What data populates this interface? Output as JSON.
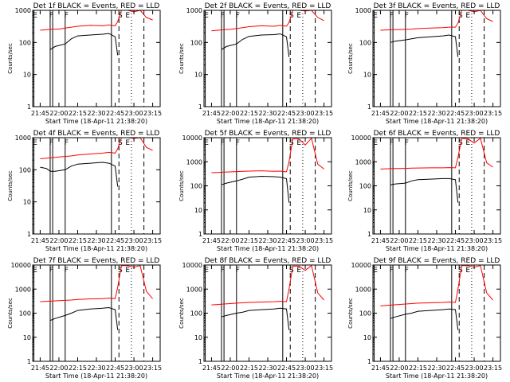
{
  "chart_data": {
    "type": "line",
    "layout": "3x3 grid",
    "series_colors": {
      "events": "#000000",
      "lld": "#ff0000"
    },
    "x_tick_labels": [
      "21:45",
      "22:00",
      "22:15",
      "22:30",
      "22:45",
      "23:00",
      "23:15"
    ],
    "x_tick_minutes": [
      0,
      15,
      30,
      45,
      60,
      75,
      90
    ],
    "xlim_minutes": [
      -6,
      96
    ],
    "xlabel": "Start Time (18-Apr-11 21:38:20)",
    "ylabel": "Counts/sec",
    "yscale": "log",
    "solid_markers_min": [
      -5,
      8,
      10,
      20,
      57
    ],
    "dashed_markers_min": [
      63,
      83
    ],
    "dotted_markers_min": [
      73
    ],
    "tags": [
      {
        "text": "E",
        "at_min": -4
      },
      {
        "text": "F",
        "at_min": 9
      },
      {
        "text": "F",
        "at_min": 21
      },
      {
        "text": "S",
        "at_min": 64
      },
      {
        "text": "E",
        "at_min": 70
      }
    ],
    "panels": [
      {
        "title": "Det 1f BLACK = Events, RED = LLD",
        "ylim": [
          1,
          1000
        ],
        "y_tick_labels": [
          "1",
          "10",
          "100",
          "1000"
        ],
        "y_tick_values": [
          1,
          10,
          100,
          1000
        ],
        "events": {
          "x": [
            8,
            12,
            20,
            25,
            30,
            40,
            50,
            55,
            60,
            62
          ],
          "y": [
            60,
            75,
            90,
            130,
            160,
            170,
            180,
            190,
            150,
            40
          ]
        },
        "lld": {
          "x": [
            0,
            5,
            10,
            15,
            20,
            25,
            30,
            40,
            50,
            55,
            60,
            62,
            65,
            70,
            75,
            80,
            85,
            90
          ],
          "y": [
            240,
            250,
            260,
            260,
            280,
            300,
            320,
            340,
            330,
            350,
            330,
            450,
            1000,
            1000,
            900,
            1000,
            600,
            500
          ]
        }
      },
      {
        "title": "Det 2f BLACK = Events, RED = LLD",
        "ylim": [
          1,
          1000
        ],
        "y_tick_labels": [
          "1",
          "10",
          "100",
          "1000"
        ],
        "y_tick_values": [
          1,
          10,
          100,
          1000
        ],
        "events": {
          "x": [
            8,
            12,
            20,
            25,
            30,
            40,
            50,
            55,
            60,
            62
          ],
          "y": [
            60,
            75,
            90,
            125,
            155,
            170,
            175,
            185,
            150,
            35
          ]
        },
        "lld": {
          "x": [
            0,
            5,
            10,
            15,
            20,
            25,
            30,
            40,
            50,
            55,
            60,
            62,
            65,
            70,
            75,
            80,
            85,
            90
          ],
          "y": [
            230,
            240,
            250,
            255,
            270,
            290,
            310,
            330,
            320,
            340,
            320,
            420,
            1000,
            1000,
            950,
            1000,
            600,
            480
          ]
        }
      },
      {
        "title": "Det 3f BLACK = Events, RED = LLD",
        "ylim": [
          1,
          1000
        ],
        "y_tick_labels": [
          "1",
          "10",
          "100",
          "1000"
        ],
        "y_tick_values": [
          1,
          10,
          100,
          1000
        ],
        "events": {
          "x": [
            8,
            12,
            20,
            25,
            30,
            40,
            50,
            55,
            60,
            62
          ],
          "y": [
            100,
            110,
            120,
            130,
            140,
            150,
            160,
            170,
            150,
            35
          ]
        },
        "lld": {
          "x": [
            0,
            5,
            10,
            15,
            20,
            25,
            30,
            40,
            50,
            55,
            60,
            62,
            65,
            70,
            75,
            80,
            85,
            90
          ],
          "y": [
            240,
            245,
            250,
            250,
            255,
            260,
            270,
            280,
            290,
            300,
            300,
            400,
            1000,
            1000,
            900,
            1000,
            550,
            450
          ]
        }
      },
      {
        "title": "Det 4f BLACK = Events, RED = LLD",
        "ylim": [
          1,
          1000
        ],
        "y_tick_labels": [
          "1",
          "10",
          "100",
          "1000"
        ],
        "y_tick_values": [
          1,
          10,
          100,
          1000
        ],
        "events": {
          "x": [
            0,
            5,
            8,
            12,
            20,
            25,
            30,
            40,
            50,
            55,
            60,
            62
          ],
          "y": [
            120,
            110,
            90,
            90,
            100,
            130,
            150,
            160,
            170,
            160,
            130,
            30
          ]
        },
        "lld": {
          "x": [
            0,
            5,
            10,
            15,
            20,
            25,
            30,
            40,
            50,
            55,
            60,
            62,
            65,
            70,
            75,
            80,
            85,
            90
          ],
          "y": [
            220,
            230,
            240,
            250,
            260,
            270,
            290,
            310,
            330,
            350,
            330,
            450,
            1000,
            1000,
            950,
            1000,
            500,
            400
          ]
        }
      },
      {
        "title": "Det 5f BLACK = Events, RED = LLD",
        "ylim": [
          1,
          10000
        ],
        "y_tick_labels": [
          "1",
          "10",
          "100",
          "1000",
          "10000"
        ],
        "y_tick_values": [
          1,
          10,
          100,
          1000,
          10000
        ],
        "events": {
          "x": [
            8,
            12,
            20,
            25,
            30,
            40,
            50,
            55,
            60,
            62
          ],
          "y": [
            110,
            130,
            160,
            190,
            230,
            250,
            240,
            230,
            200,
            20
          ]
        },
        "lld": {
          "x": [
            0,
            5,
            10,
            15,
            20,
            25,
            30,
            40,
            50,
            55,
            60,
            62,
            65,
            70,
            75,
            80,
            85,
            90
          ],
          "y": [
            350,
            360,
            370,
            380,
            390,
            400,
            410,
            420,
            400,
            410,
            380,
            1000,
            9000,
            9000,
            5000,
            9500,
            800,
            500
          ]
        }
      },
      {
        "title": "Det 6f BLACK = Events, RED = LLD",
        "ylim": [
          1,
          10000
        ],
        "y_tick_labels": [
          "1",
          "10",
          "100",
          "1000",
          "10000"
        ],
        "y_tick_values": [
          1,
          10,
          100,
          1000,
          10000
        ],
        "events": {
          "x": [
            8,
            12,
            20,
            25,
            30,
            40,
            50,
            55,
            60,
            62
          ],
          "y": [
            110,
            120,
            130,
            160,
            180,
            190,
            200,
            200,
            180,
            20
          ]
        },
        "lld": {
          "x": [
            0,
            5,
            10,
            15,
            20,
            25,
            30,
            40,
            50,
            55,
            60,
            62,
            65,
            70,
            75,
            80,
            85,
            90
          ],
          "y": [
            500,
            510,
            520,
            520,
            530,
            540,
            550,
            560,
            560,
            570,
            560,
            1500,
            9500,
            9000,
            6000,
            9500,
            900,
            600
          ]
        }
      },
      {
        "title": "Det 7f BLACK = Events, RED = LLD",
        "ylim": [
          1,
          10000
        ],
        "y_tick_labels": [
          "1",
          "10",
          "100",
          "1000",
          "10000"
        ],
        "y_tick_values": [
          1,
          10,
          100,
          1000,
          10000
        ],
        "events": {
          "x": [
            8,
            12,
            20,
            25,
            30,
            40,
            50,
            55,
            60,
            62
          ],
          "y": [
            50,
            60,
            80,
            100,
            130,
            150,
            160,
            170,
            140,
            20
          ]
        },
        "lld": {
          "x": [
            0,
            5,
            10,
            15,
            20,
            25,
            30,
            40,
            50,
            55,
            60,
            62,
            65,
            70,
            75,
            80,
            85,
            90
          ],
          "y": [
            300,
            310,
            320,
            330,
            340,
            350,
            370,
            390,
            400,
            420,
            400,
            1200,
            9500,
            9500,
            8000,
            9500,
            800,
            400
          ]
        }
      },
      {
        "title": "Det 8f BLACK = Events, RED = LLD",
        "ylim": [
          1,
          10000
        ],
        "y_tick_labels": [
          "1",
          "10",
          "100",
          "1000",
          "10000"
        ],
        "y_tick_values": [
          1,
          10,
          100,
          1000,
          10000
        ],
        "events": {
          "x": [
            8,
            12,
            20,
            25,
            30,
            40,
            50,
            55,
            60,
            62
          ],
          "y": [
            70,
            80,
            100,
            110,
            130,
            140,
            150,
            160,
            150,
            20
          ]
        },
        "lld": {
          "x": [
            0,
            5,
            10,
            15,
            20,
            25,
            30,
            40,
            50,
            55,
            60,
            62,
            65,
            70,
            75,
            80,
            85,
            90
          ],
          "y": [
            220,
            230,
            240,
            250,
            260,
            270,
            280,
            290,
            300,
            310,
            300,
            1000,
            9000,
            9000,
            6000,
            9500,
            700,
            350
          ]
        }
      },
      {
        "title": "Det 9f BLACK = Events, RED = LLD",
        "ylim": [
          1,
          10000
        ],
        "y_tick_labels": [
          "1",
          "10",
          "100",
          "1000",
          "10000"
        ],
        "y_tick_values": [
          1,
          10,
          100,
          1000,
          10000
        ],
        "events": {
          "x": [
            8,
            12,
            20,
            25,
            30,
            40,
            50,
            55,
            60,
            62
          ],
          "y": [
            60,
            70,
            90,
            100,
            120,
            130,
            140,
            150,
            140,
            20
          ]
        },
        "lld": {
          "x": [
            0,
            5,
            10,
            15,
            20,
            25,
            30,
            40,
            50,
            55,
            60,
            62,
            65,
            70,
            75,
            80,
            85,
            90
          ],
          "y": [
            200,
            210,
            220,
            230,
            240,
            250,
            260,
            270,
            280,
            290,
            280,
            1000,
            9500,
            9500,
            8000,
            9500,
            700,
            350
          ]
        }
      }
    ]
  }
}
